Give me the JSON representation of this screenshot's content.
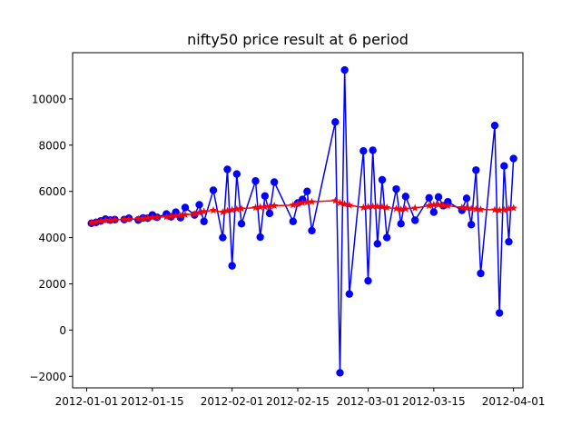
{
  "chart_data": {
    "type": "line",
    "title": "nifty50 price result at 6 period",
    "xlabel": "",
    "ylabel": "",
    "xlim": [
      "2011-12-29",
      "2012-04-03"
    ],
    "ylim": [
      -2500,
      12000
    ],
    "grid": false,
    "x_ticks": [
      "2012-01-01",
      "2012-01-15",
      "2012-02-01",
      "2012-02-15",
      "2012-03-01",
      "2012-03-15",
      "2012-04-01"
    ],
    "y_ticks": [
      -2000,
      0,
      2000,
      4000,
      6000,
      8000,
      10000
    ],
    "colors": {
      "actual": "#0000ff",
      "predicted": "#ff0000"
    },
    "series": [
      {
        "marker": "circle",
        "color": "#0000ff",
        "points": [
          [
            "2012-01-02",
            4620
          ],
          [
            "2012-01-03",
            4660
          ],
          [
            "2012-01-04",
            4720
          ],
          [
            "2012-01-05",
            4800
          ],
          [
            "2012-01-06",
            4760
          ],
          [
            "2012-01-07",
            4780
          ],
          [
            "2012-01-09",
            4780
          ],
          [
            "2012-01-10",
            4840
          ],
          [
            "2012-01-12",
            4760
          ],
          [
            "2012-01-13",
            4850
          ],
          [
            "2012-01-14",
            4840
          ],
          [
            "2012-01-15",
            4980
          ],
          [
            "2012-01-16",
            4880
          ],
          [
            "2012-01-18",
            5020
          ],
          [
            "2012-01-19",
            4900
          ],
          [
            "2012-01-20",
            5100
          ],
          [
            "2012-01-21",
            4860
          ],
          [
            "2012-01-22",
            5300
          ],
          [
            "2012-01-24",
            4980
          ],
          [
            "2012-01-25",
            5420
          ],
          [
            "2012-01-26",
            4700
          ],
          [
            "2012-01-28",
            6050
          ],
          [
            "2012-01-30",
            4000
          ],
          [
            "2012-01-31",
            6950
          ],
          [
            "2012-02-01",
            2780
          ],
          [
            "2012-02-02",
            6750
          ],
          [
            "2012-02-03",
            4600
          ],
          [
            "2012-02-06",
            6450
          ],
          [
            "2012-02-07",
            4020
          ],
          [
            "2012-02-08",
            5800
          ],
          [
            "2012-02-09",
            5050
          ],
          [
            "2012-02-10",
            6400
          ],
          [
            "2012-02-14",
            4700
          ],
          [
            "2012-02-15",
            5500
          ],
          [
            "2012-02-16",
            5650
          ],
          [
            "2012-02-17",
            6000
          ],
          [
            "2012-02-18",
            4300
          ],
          [
            "2012-02-23",
            9000
          ],
          [
            "2012-02-24",
            -1850
          ],
          [
            "2012-02-25",
            11250
          ],
          [
            "2012-02-26",
            1560
          ],
          [
            "2012-02-29",
            7750
          ],
          [
            "2012-03-01",
            2130
          ],
          [
            "2012-03-02",
            7780
          ],
          [
            "2012-03-03",
            3730
          ],
          [
            "2012-03-04",
            6500
          ],
          [
            "2012-03-05",
            4000
          ],
          [
            "2012-03-07",
            6100
          ],
          [
            "2012-03-08",
            4600
          ],
          [
            "2012-03-09",
            5780
          ],
          [
            "2012-03-11",
            4750
          ],
          [
            "2012-03-14",
            5720
          ],
          [
            "2012-03-15",
            5100
          ],
          [
            "2012-03-16",
            5760
          ],
          [
            "2012-03-17",
            5380
          ],
          [
            "2012-03-18",
            5550
          ],
          [
            "2012-03-21",
            5180
          ],
          [
            "2012-03-22",
            5700
          ],
          [
            "2012-03-23",
            4560
          ],
          [
            "2012-03-24",
            6920
          ],
          [
            "2012-03-25",
            2450
          ],
          [
            "2012-03-28",
            8850
          ],
          [
            "2012-03-29",
            740
          ],
          [
            "2012-03-30",
            7100
          ],
          [
            "2012-03-31",
            3820
          ],
          [
            "2012-04-01",
            7420
          ]
        ]
      },
      {
        "marker": "star",
        "color": "#ff0000",
        "points": [
          [
            "2012-01-02",
            4640
          ],
          [
            "2012-01-03",
            4680
          ],
          [
            "2012-01-04",
            4720
          ],
          [
            "2012-01-05",
            4750
          ],
          [
            "2012-01-06",
            4760
          ],
          [
            "2012-01-07",
            4770
          ],
          [
            "2012-01-09",
            4790
          ],
          [
            "2012-01-10",
            4800
          ],
          [
            "2012-01-12",
            4810
          ],
          [
            "2012-01-13",
            4830
          ],
          [
            "2012-01-14",
            4850
          ],
          [
            "2012-01-15",
            4870
          ],
          [
            "2012-01-16",
            4880
          ],
          [
            "2012-01-18",
            4900
          ],
          [
            "2012-01-19",
            4920
          ],
          [
            "2012-01-20",
            4940
          ],
          [
            "2012-01-21",
            4960
          ],
          [
            "2012-01-22",
            4990
          ],
          [
            "2012-01-24",
            5020
          ],
          [
            "2012-01-25",
            5080
          ],
          [
            "2012-01-26",
            5130
          ],
          [
            "2012-01-28",
            5180
          ],
          [
            "2012-01-30",
            5100
          ],
          [
            "2012-01-31",
            5160
          ],
          [
            "2012-02-01",
            5200
          ],
          [
            "2012-02-02",
            5230
          ],
          [
            "2012-02-03",
            5250
          ],
          [
            "2012-02-06",
            5300
          ],
          [
            "2012-02-07",
            5320
          ],
          [
            "2012-02-08",
            5330
          ],
          [
            "2012-02-09",
            5340
          ],
          [
            "2012-02-10",
            5380
          ],
          [
            "2012-02-14",
            5410
          ],
          [
            "2012-02-15",
            5460
          ],
          [
            "2012-02-16",
            5500
          ],
          [
            "2012-02-17",
            5530
          ],
          [
            "2012-02-18",
            5550
          ],
          [
            "2012-02-23",
            5600
          ],
          [
            "2012-02-24",
            5500
          ],
          [
            "2012-02-25",
            5450
          ],
          [
            "2012-02-26",
            5400
          ],
          [
            "2012-02-29",
            5300
          ],
          [
            "2012-03-01",
            5330
          ],
          [
            "2012-03-02",
            5350
          ],
          [
            "2012-03-03",
            5340
          ],
          [
            "2012-03-04",
            5330
          ],
          [
            "2012-03-05",
            5300
          ],
          [
            "2012-03-07",
            5250
          ],
          [
            "2012-03-08",
            5220
          ],
          [
            "2012-03-09",
            5240
          ],
          [
            "2012-03-11",
            5280
          ],
          [
            "2012-03-14",
            5380
          ],
          [
            "2012-03-15",
            5420
          ],
          [
            "2012-03-16",
            5420
          ],
          [
            "2012-03-17",
            5400
          ],
          [
            "2012-03-18",
            5380
          ],
          [
            "2012-03-21",
            5300
          ],
          [
            "2012-03-22",
            5280
          ],
          [
            "2012-03-23",
            5250
          ],
          [
            "2012-03-24",
            5230
          ],
          [
            "2012-03-25",
            5220
          ],
          [
            "2012-03-28",
            5200
          ],
          [
            "2012-03-29",
            5180
          ],
          [
            "2012-03-30",
            5200
          ],
          [
            "2012-03-31",
            5240
          ],
          [
            "2012-04-01",
            5280
          ]
        ]
      }
    ]
  }
}
